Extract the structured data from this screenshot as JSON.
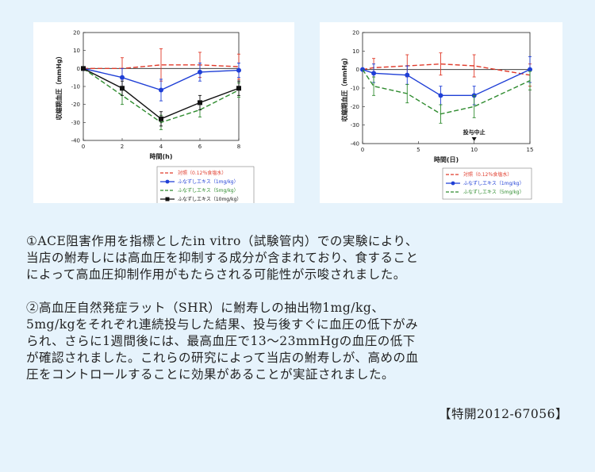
{
  "chart_data": [
    {
      "type": "line",
      "xlabel": "時間(h)",
      "ylabel": "収縮期血圧（mmHg）",
      "xlim": [
        0,
        8
      ],
      "ylim": [
        -40,
        20
      ],
      "xticks": [
        0,
        2,
        4,
        6,
        8
      ],
      "yticks": [
        20,
        10,
        0,
        -10,
        -20,
        -30,
        -40
      ],
      "legend_position": "bottom-right",
      "series": [
        {
          "name": "対照（0.12％食塩水）",
          "color": "#e03a2a",
          "marker": "none",
          "dash": "6,3",
          "x": [
            0,
            2,
            4,
            6,
            8
          ],
          "y": [
            0,
            0,
            2,
            2,
            1
          ],
          "err": [
            0,
            6,
            9,
            7,
            7
          ]
        },
        {
          "name": "ふなずしエキス（1mg/kg）",
          "color": "#1f3fd6",
          "marker": "circle",
          "dash": "",
          "x": [
            0,
            2,
            4,
            6,
            8
          ],
          "y": [
            0,
            -5,
            -12,
            -2,
            -1
          ],
          "err": [
            0,
            5,
            6,
            5,
            4
          ]
        },
        {
          "name": "ふなずしエキス（5mg/kg）",
          "color": "#2e8b2e",
          "marker": "none",
          "dash": "6,3",
          "x": [
            0,
            2,
            4,
            6,
            8
          ],
          "y": [
            0,
            -15,
            -30,
            -23,
            -12
          ],
          "err": [
            0,
            5,
            4,
            4,
            4
          ]
        },
        {
          "name": "ふなずしエキス（10mg/kg）",
          "color": "#111111",
          "marker": "square",
          "dash": "",
          "x": [
            0,
            2,
            4,
            6,
            8
          ],
          "y": [
            0,
            -11,
            -28,
            -19,
            -11
          ],
          "err": [
            0,
            4,
            4,
            4,
            4
          ]
        }
      ]
    },
    {
      "type": "line",
      "xlabel": "時間(日)",
      "ylabel": "収縮期血圧（mmHg）",
      "xlim": [
        0,
        15
      ],
      "ylim": [
        -40,
        20
      ],
      "xticks": [
        0,
        5,
        10,
        15
      ],
      "yticks": [
        20,
        10,
        0,
        -10,
        -20,
        -30,
        -40
      ],
      "annotation": {
        "text": "投与中止",
        "x": 10
      },
      "legend_position": "bottom-right",
      "series": [
        {
          "name": "対照（0.12％食塩水）",
          "color": "#e03a2a",
          "marker": "none",
          "dash": "6,3",
          "x": [
            0,
            1,
            4,
            7,
            10,
            15
          ],
          "y": [
            0,
            1,
            2,
            3,
            2,
            -3
          ],
          "err": [
            0,
            5,
            6,
            6,
            6,
            6
          ]
        },
        {
          "name": "ふなずしエキス（1mg/kg）",
          "color": "#1f3fd6",
          "marker": "circle",
          "dash": "",
          "x": [
            0,
            1,
            4,
            7,
            10,
            15
          ],
          "y": [
            0,
            -2,
            -3,
            -14,
            -14,
            0
          ],
          "err": [
            0,
            5,
            5,
            5,
            5,
            7
          ]
        },
        {
          "name": "ふなずしエキス（5mg/kg）",
          "color": "#2e8b2e",
          "marker": "none",
          "dash": "6,3",
          "x": [
            0,
            1,
            4,
            7,
            10,
            15
          ],
          "y": [
            0,
            -9,
            -13,
            -24,
            -20,
            -6
          ],
          "err": [
            0,
            5,
            5,
            5,
            6,
            5
          ]
        }
      ]
    }
  ],
  "text": {
    "para1": [
      "①ACE阻害作用を指標としたin vitro（試験管内）での実験により、",
      "当店の鮒寿しには高血圧を抑制する成分が含まれており、食すること",
      "によって高血圧抑制作用がもたらされる可能性が示唆されました。"
    ],
    "para2": [
      "②高血圧自然発症ラット（SHR）に鮒寿しの抽出物1mg/kg、",
      "5mg/kgをそれぞれ連続投与した結果、投与後すぐに血圧の低下がみ",
      "られ、さらに1週間後には、最高血圧で13～23mmHgの血圧の低下",
      "が確認されました。これらの研究によって当店の鮒寿しが、高めの血",
      "圧をコントロールすることに効果があることが実証されました。"
    ],
    "patent": "【特開2012-67056】"
  }
}
